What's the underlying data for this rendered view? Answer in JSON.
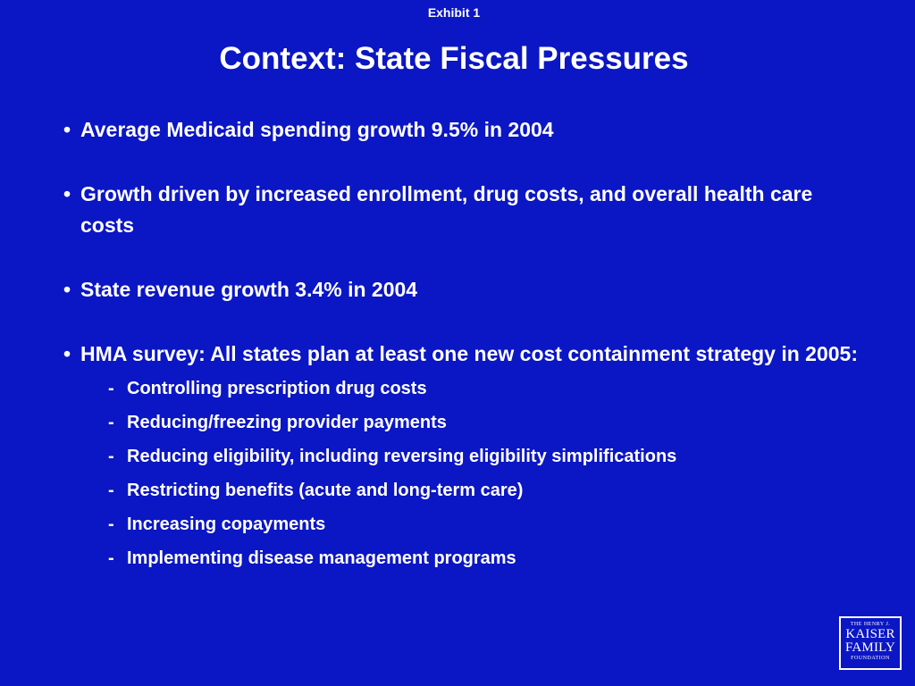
{
  "exhibit_label": "Exhibit 1",
  "title": "Context: State Fiscal Pressures",
  "bullets": [
    {
      "marker": "•",
      "text": "Average Medicaid spending growth 9.5% in 2004"
    },
    {
      "marker": "•",
      "text": "Growth driven by increased enrollment, drug costs, and overall health care costs"
    },
    {
      "marker": "•",
      "text": "State revenue growth 3.4% in 2004"
    },
    {
      "marker": "•",
      "text": "HMA survey: All states plan at least one new cost containment strategy in 2005:"
    }
  ],
  "sub_bullets": [
    {
      "marker": "-",
      "text": "Controlling prescription drug costs"
    },
    {
      "marker": "-",
      "text": "Reducing/freezing provider payments"
    },
    {
      "marker": "-",
      "text": "Reducing eligibility, including reversing eligibility simplifications"
    },
    {
      "marker": "-",
      "text": "Restricting benefits (acute and long-term care)"
    },
    {
      "marker": "-",
      "text": "Increasing copayments"
    },
    {
      "marker": "-",
      "text": "Implementing disease management programs"
    }
  ],
  "logo": {
    "line1": "THE HENRY J.",
    "line2": "KAISER",
    "line3": "FAMILY",
    "line4": "FOUNDATION"
  },
  "colors": {
    "background": "#0b16c4",
    "text": "#ffffff"
  }
}
